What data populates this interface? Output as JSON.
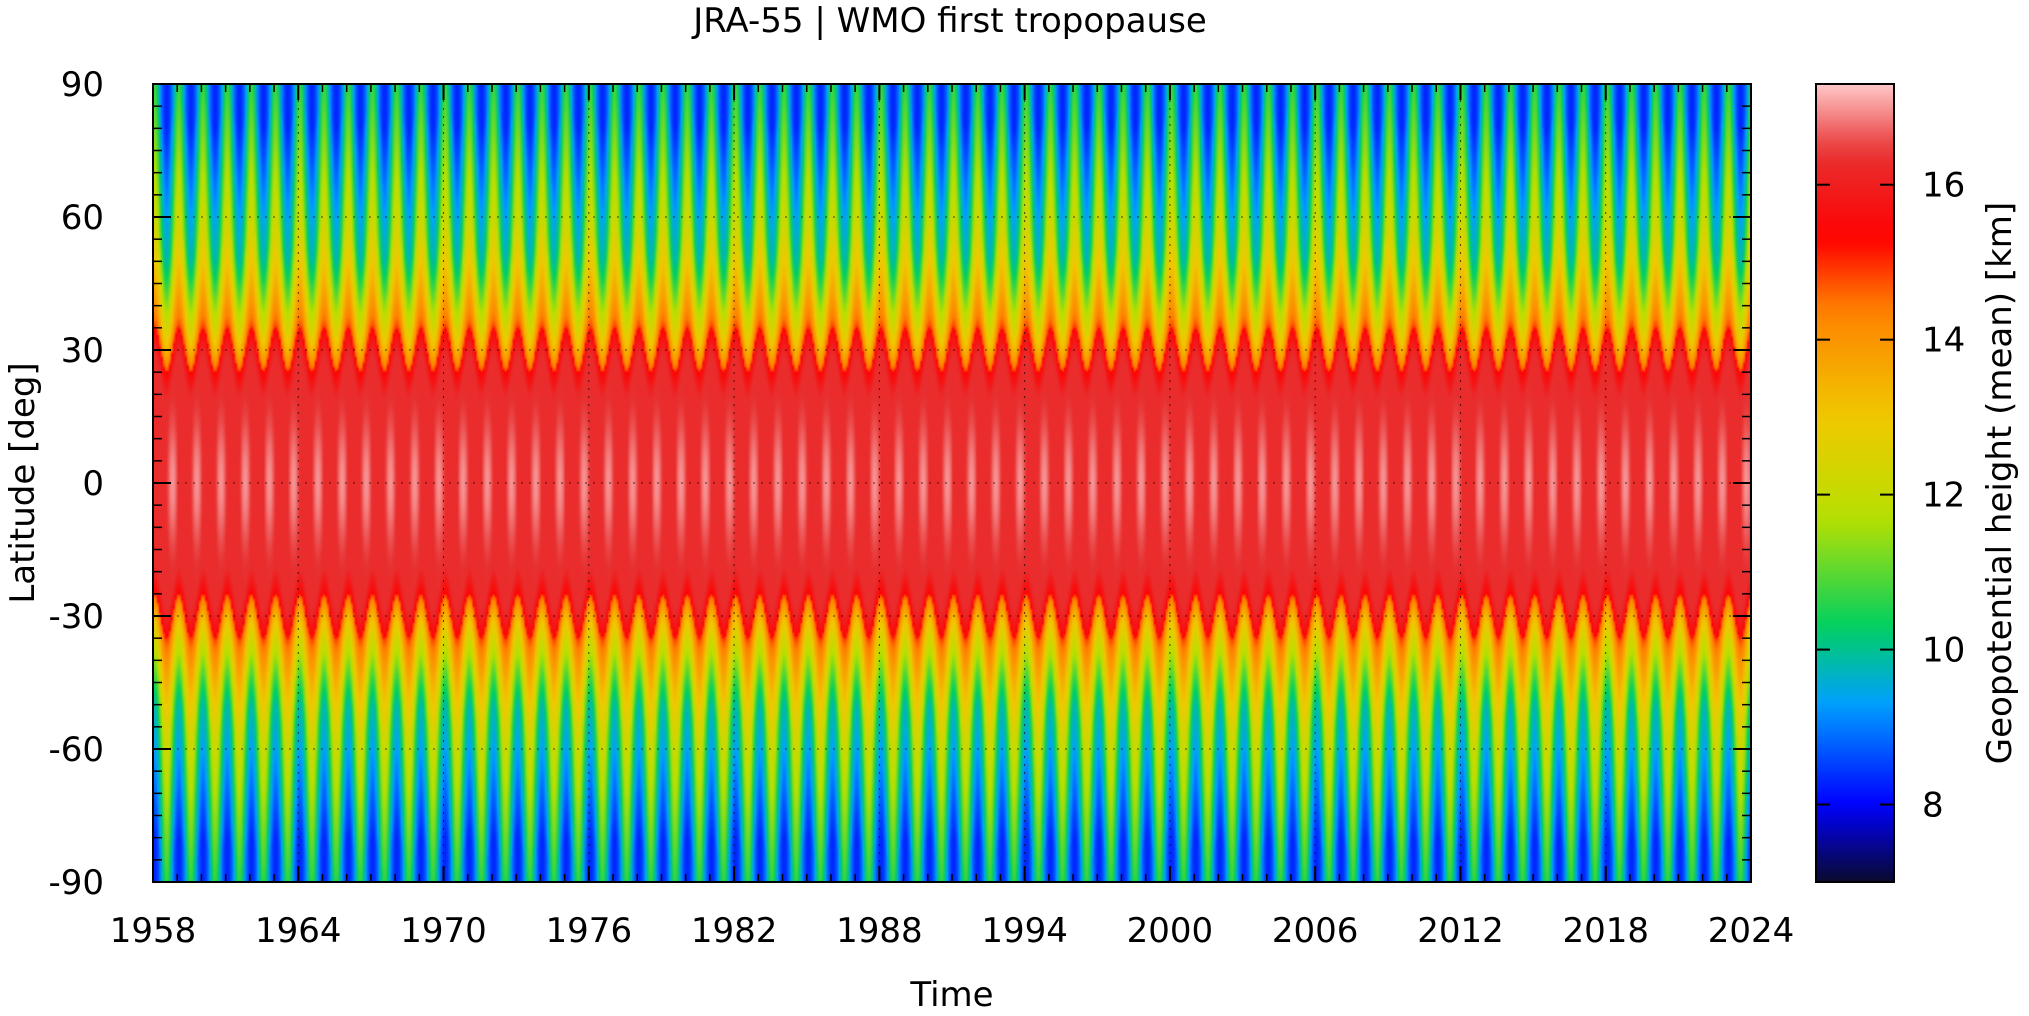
{
  "chart_data": {
    "type": "heatmap",
    "title": "JRA-55 | WMO first tropopause",
    "xlabel": "Time",
    "ylabel": "Latitude [deg]",
    "xlim": [
      1958,
      2024
    ],
    "ylim": [
      -90,
      90
    ],
    "x_ticks": [
      1958,
      1964,
      1970,
      1976,
      1982,
      1988,
      1994,
      2000,
      2006,
      2012,
      2018,
      2024
    ],
    "y_ticks": [
      90,
      60,
      30,
      0,
      -30,
      -60,
      -90
    ],
    "x_tick_labels": [
      "1958",
      "1964",
      "1970",
      "1976",
      "1982",
      "1988",
      "1994",
      "2000",
      "2006",
      "2012",
      "2018",
      "2024"
    ],
    "y_tick_labels": [
      "90",
      "60",
      "30",
      "0",
      "-30",
      "-60",
      "-90"
    ],
    "grid": true,
    "colorbar": {
      "label": "Geopotential height (mean) [km]",
      "range": [
        7,
        17.3
      ],
      "ticks": [
        8,
        10,
        12,
        14,
        16
      ],
      "tick_labels": [
        "8",
        "10",
        "12",
        "14",
        "16"
      ],
      "colormap": [
        "#0a0a2e",
        "#0000ff",
        "#00a0ff",
        "#00d060",
        "#b8e000",
        "#f0c800",
        "#ff8000",
        "#ff0000",
        "#e83030",
        "#ffc8c8"
      ]
    },
    "field_description_values": {
      "tropics_km": 16.3,
      "tropics_peak_km": 17.0,
      "subtropical_break_lat": [
        -30,
        30
      ],
      "polar_summer_km": 10.5,
      "polar_winter_km": 8.0,
      "seasonal_cycle_period_years": 1
    }
  }
}
